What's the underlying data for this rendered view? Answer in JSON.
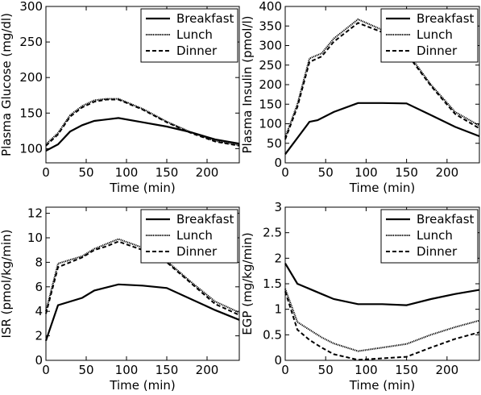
{
  "chart_data": [
    {
      "type": "line",
      "xlabel": "Time (min)",
      "ylabel": "Plasma Glucose (mg/dl)",
      "xlim": [
        0,
        240
      ],
      "ylim": [
        80,
        300
      ],
      "xticks": [
        "0",
        "50",
        "100",
        "150",
        "200"
      ],
      "xtick_values": [
        0,
        50,
        100,
        150,
        200
      ],
      "yticks": [
        "100",
        "150",
        "200",
        "250",
        "300"
      ],
      "ytick_values": [
        100,
        150,
        200,
        250,
        300
      ],
      "legend_position": "top-right",
      "series": [
        {
          "name": "Breakfast",
          "style": "solid",
          "x": [
            0,
            15,
            30,
            45,
            60,
            90,
            120,
            150,
            180,
            210,
            240
          ],
          "y": [
            97,
            106,
            124,
            133,
            139,
            143,
            137,
            131,
            123,
            113,
            107
          ]
        },
        {
          "name": "Lunch",
          "style": "dotted",
          "x": [
            0,
            15,
            30,
            45,
            60,
            75,
            90,
            120,
            150,
            180,
            210,
            240
          ],
          "y": [
            106,
            122,
            147,
            160,
            168,
            170,
            170,
            156,
            138,
            123,
            111,
            105
          ]
        },
        {
          "name": "Dinner",
          "style": "dashed",
          "x": [
            0,
            15,
            30,
            45,
            60,
            75,
            90,
            120,
            150,
            180,
            210,
            240
          ],
          "y": [
            104,
            120,
            145,
            158,
            166,
            169,
            169,
            155,
            137,
            122,
            110,
            104
          ]
        }
      ]
    },
    {
      "type": "line",
      "xlabel": "Time (min)",
      "ylabel": "Plasma Insulin (pmol/l)",
      "xlim": [
        0,
        240
      ],
      "ylim": [
        0,
        400
      ],
      "xticks": [
        "0",
        "50",
        "100",
        "150",
        "200"
      ],
      "xtick_values": [
        0,
        50,
        100,
        150,
        200
      ],
      "yticks": [
        "0",
        "50",
        "100",
        "150",
        "200",
        "250",
        "300",
        "350",
        "400"
      ],
      "ytick_values": [
        0,
        50,
        100,
        150,
        200,
        250,
        300,
        350,
        400
      ],
      "legend_position": "top-right",
      "series": [
        {
          "name": "Breakfast",
          "style": "solid",
          "x": [
            0,
            30,
            40,
            60,
            90,
            120,
            150,
            180,
            210,
            240
          ],
          "y": [
            22,
            105,
            109,
            130,
            153,
            153,
            152,
            122,
            92,
            68
          ]
        },
        {
          "name": "Lunch",
          "style": "dotted",
          "x": [
            0,
            15,
            30,
            45,
            60,
            90,
            120,
            150,
            180,
            210,
            240
          ],
          "y": [
            65,
            150,
            267,
            280,
            318,
            367,
            340,
            285,
            200,
            130,
            95
          ]
        },
        {
          "name": "Dinner",
          "style": "dashed",
          "x": [
            0,
            15,
            30,
            45,
            60,
            90,
            120,
            150,
            180,
            210,
            240
          ],
          "y": [
            60,
            143,
            258,
            272,
            310,
            358,
            334,
            280,
            197,
            125,
            88
          ]
        }
      ]
    },
    {
      "type": "line",
      "xlabel": "Time (min)",
      "ylabel": "ISR (pmol/kg/min)",
      "xlim": [
        0,
        240
      ],
      "ylim": [
        0,
        12.5
      ],
      "xticks": [
        "0",
        "50",
        "100",
        "150",
        "200"
      ],
      "xtick_values": [
        0,
        50,
        100,
        150,
        200
      ],
      "yticks": [
        "0",
        "2",
        "4",
        "6",
        "8",
        "10",
        "12"
      ],
      "ytick_values": [
        0,
        2,
        4,
        6,
        8,
        10,
        12
      ],
      "legend_position": "top-right",
      "series": [
        {
          "name": "Breakfast",
          "style": "solid",
          "x": [
            0,
            15,
            45,
            60,
            90,
            120,
            150,
            180,
            210,
            240
          ],
          "y": [
            1.6,
            4.5,
            5.1,
            5.7,
            6.2,
            6.1,
            5.9,
            5.0,
            4.1,
            3.3
          ]
        },
        {
          "name": "Lunch",
          "style": "dotted",
          "x": [
            0,
            15,
            30,
            45,
            60,
            75,
            90,
            120,
            150,
            180,
            210,
            240
          ],
          "y": [
            4.0,
            7.9,
            8.2,
            8.5,
            9.1,
            9.5,
            9.9,
            9.2,
            8.1,
            6.4,
            4.8,
            3.9
          ]
        },
        {
          "name": "Dinner",
          "style": "dashed",
          "x": [
            0,
            15,
            30,
            45,
            60,
            75,
            90,
            120,
            150,
            180,
            210,
            240
          ],
          "y": [
            3.8,
            7.6,
            8.0,
            8.4,
            9.0,
            9.3,
            9.7,
            9.0,
            8.0,
            6.3,
            4.6,
            3.7
          ]
        }
      ]
    },
    {
      "type": "line",
      "xlabel": "Time (min)",
      "ylabel": "EGP (mg/kg/min)",
      "xlim": [
        0,
        240
      ],
      "ylim": [
        0,
        3
      ],
      "xticks": [
        "0",
        "50",
        "100",
        "150",
        "200"
      ],
      "xtick_values": [
        0,
        50,
        100,
        150,
        200
      ],
      "yticks": [
        "0",
        "0.5",
        "1",
        "1.5",
        "2",
        "2.5",
        "3"
      ],
      "ytick_values": [
        0,
        0.5,
        1,
        1.5,
        2,
        2.5,
        3
      ],
      "legend_position": "top-right",
      "series": [
        {
          "name": "Breakfast",
          "style": "solid",
          "x": [
            0,
            15,
            30,
            45,
            60,
            90,
            120,
            150,
            180,
            210,
            240
          ],
          "y": [
            1.9,
            1.5,
            1.4,
            1.3,
            1.2,
            1.1,
            1.1,
            1.08,
            1.2,
            1.3,
            1.38
          ]
        },
        {
          "name": "Lunch",
          "style": "dotted",
          "x": [
            0,
            15,
            30,
            45,
            60,
            90,
            120,
            150,
            180,
            210,
            240
          ],
          "y": [
            1.4,
            0.75,
            0.6,
            0.45,
            0.33,
            0.18,
            0.25,
            0.32,
            0.5,
            0.65,
            0.78
          ]
        },
        {
          "name": "Dinner",
          "style": "dashed",
          "x": [
            0,
            15,
            30,
            45,
            60,
            90,
            120,
            150,
            180,
            210,
            240
          ],
          "y": [
            1.35,
            0.6,
            0.4,
            0.25,
            0.12,
            0.01,
            0.04,
            0.07,
            0.25,
            0.42,
            0.55
          ]
        }
      ]
    }
  ]
}
